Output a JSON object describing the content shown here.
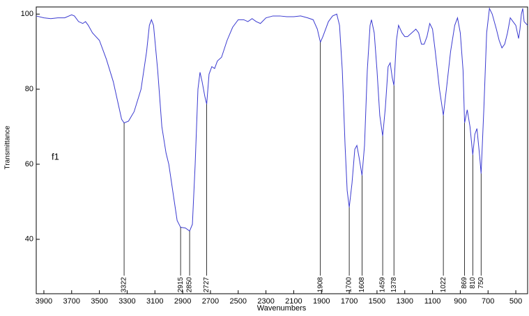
{
  "chart_data": {
    "type": "line",
    "x_label": "Wavenumbers",
    "y_label": "Transmittance",
    "note": "f1",
    "xlim": [
      3955,
      415
    ],
    "ylim": [
      25.5,
      101.9
    ],
    "x_reversed": true,
    "xticks": [
      3900,
      3700,
      3500,
      3300,
      3100,
      2900,
      2700,
      2500,
      2300,
      2100,
      1900,
      1700,
      1500,
      1300,
      1100,
      900,
      700,
      500
    ],
    "yticks": [
      40,
      60,
      80,
      100
    ],
    "grid": false,
    "series": [
      {
        "name": null,
        "color": "#3a3ad0",
        "x": [
          3955,
          3900,
          3850,
          3800,
          3750,
          3700,
          3680,
          3650,
          3620,
          3600,
          3580,
          3550,
          3500,
          3450,
          3400,
          3370,
          3340,
          3322,
          3290,
          3250,
          3200,
          3160,
          3140,
          3125,
          3110,
          3080,
          3050,
          3020,
          3000,
          2980,
          2960,
          2940,
          2915,
          2880,
          2850,
          2830,
          2810,
          2790,
          2775,
          2760,
          2740,
          2727,
          2710,
          2690,
          2670,
          2650,
          2620,
          2580,
          2540,
          2500,
          2460,
          2430,
          2400,
          2370,
          2340,
          2300,
          2250,
          2200,
          2150,
          2100,
          2050,
          2000,
          1960,
          1930,
          1908,
          1890,
          1850,
          1820,
          1790,
          1770,
          1750,
          1730,
          1715,
          1700,
          1680,
          1660,
          1645,
          1630,
          1608,
          1590,
          1570,
          1550,
          1540,
          1520,
          1500,
          1480,
          1459,
          1440,
          1420,
          1405,
          1390,
          1378,
          1360,
          1345,
          1320,
          1300,
          1280,
          1250,
          1220,
          1200,
          1180,
          1160,
          1140,
          1120,
          1100,
          1080,
          1050,
          1022,
          1000,
          970,
          940,
          920,
          900,
          880,
          869,
          850,
          830,
          810,
          795,
          780,
          760,
          750,
          730,
          710,
          690,
          670,
          640,
          620,
          600,
          580,
          560,
          540,
          520,
          500,
          480,
          470,
          460,
          450,
          440,
          415
        ],
        "values": [
          99.5,
          99,
          98.8,
          99,
          99,
          99.8,
          99.5,
          98,
          97.5,
          98,
          97,
          95,
          93,
          88,
          82,
          77,
          72,
          71,
          71.5,
          74,
          80,
          90,
          97,
          98.5,
          97,
          85,
          70,
          63,
          60,
          55,
          50,
          45,
          43.2,
          43,
          42.2,
          44,
          60,
          80,
          84.5,
          82,
          78,
          76,
          84,
          86,
          85.5,
          87.5,
          88.5,
          93,
          96.5,
          98.5,
          98.5,
          98,
          98.8,
          98,
          97.5,
          99,
          99.5,
          99.5,
          99.3,
          99.3,
          99.5,
          99,
          98.5,
          96,
          92.5,
          94,
          98,
          99.5,
          100,
          97,
          85,
          65,
          53,
          48.5,
          55,
          64,
          65,
          62,
          57,
          65,
          85,
          97,
          98.5,
          95,
          85,
          73,
          67.5,
          75,
          86,
          87,
          83,
          81,
          93,
          97,
          95,
          94,
          94,
          95,
          96,
          95,
          92,
          92,
          94,
          97.5,
          96,
          90,
          80,
          73,
          80,
          90,
          97,
          99,
          95,
          85,
          71,
          74.5,
          70,
          62.5,
          68,
          69.5,
          62,
          57.5,
          75,
          95,
          101.5,
          100,
          96,
          93,
          91,
          92,
          95,
          99,
          98,
          97,
          93.5,
          96,
          100,
          101.5,
          98,
          97
        ]
      }
    ],
    "annotations": [
      {
        "text": "3322",
        "x": 3322,
        "y": 71
      },
      {
        "text": "2915",
        "x": 2915,
        "y": 43.2
      },
      {
        "text": "2850",
        "x": 2850,
        "y": 42.2
      },
      {
        "text": "2727",
        "x": 2727,
        "y": 76
      },
      {
        "text": "1908",
        "x": 1908,
        "y": 92.5
      },
      {
        "text": "1700",
        "x": 1700,
        "y": 48.5
      },
      {
        "text": "1608",
        "x": 1608,
        "y": 57
      },
      {
        "text": "1459",
        "x": 1459,
        "y": 67.5
      },
      {
        "text": "1378",
        "x": 1378,
        "y": 81
      },
      {
        "text": "1022",
        "x": 1022,
        "y": 73
      },
      {
        "text": "869",
        "x": 869,
        "y": 71
      },
      {
        "text": "810",
        "x": 810,
        "y": 62.5
      },
      {
        "text": "750",
        "x": 750,
        "y": 57.5
      }
    ]
  }
}
